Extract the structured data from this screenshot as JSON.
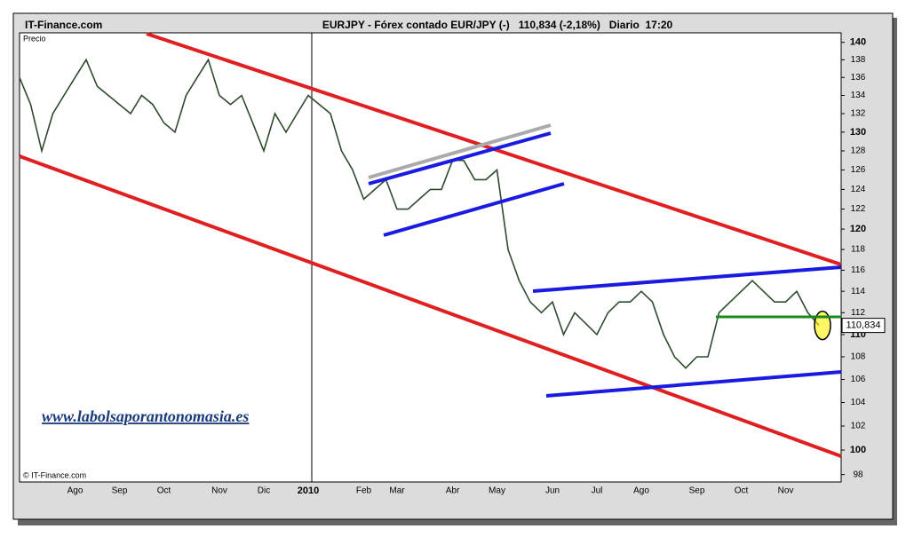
{
  "chart_data": {
    "type": "line",
    "site": "IT-Finance.com",
    "title": "EURJPY - Fórex contado EUR/JPY (-)   110,834 (-2,18%)   Diario  17:20",
    "copyright": "© IT-Finance.com",
    "watermark": "www.labolsaporantonomasia.es",
    "categories": [
      null,
      null,
      null,
      null,
      null,
      "Ago",
      null,
      null,
      null,
      "Sep",
      null,
      null,
      null,
      "Oct",
      null,
      null,
      null,
      null,
      "Nov",
      null,
      null,
      null,
      "Dic",
      null,
      null,
      null,
      "2010",
      null,
      null,
      null,
      null,
      "Feb",
      null,
      null,
      "Mar",
      null,
      null,
      null,
      null,
      "Abr",
      null,
      null,
      null,
      "May",
      null,
      null,
      null,
      null,
      "Jun",
      null,
      null,
      null,
      "Jul",
      null,
      null,
      null,
      "Ago",
      null,
      null,
      null,
      null,
      "Sep",
      null,
      null,
      null,
      "Oct",
      null,
      null,
      null,
      "Nov",
      null,
      null,
      null
    ],
    "series": [
      {
        "name": "Precio",
        "color": "#2f4a2f",
        "values": [
          136,
          133,
          128,
          132,
          134,
          136,
          138,
          135,
          134,
          133,
          132,
          134,
          133,
          131,
          130,
          134,
          136,
          138,
          134,
          133,
          134,
          131,
          128,
          132,
          130,
          132,
          134,
          133,
          132,
          128,
          126,
          123,
          124,
          125,
          122,
          122,
          123,
          124,
          124,
          127,
          127,
          125,
          125,
          126,
          118,
          115,
          113,
          112,
          113,
          110,
          112,
          111,
          110,
          112,
          113,
          113,
          114,
          113,
          110,
          108,
          107,
          108,
          108,
          112,
          113,
          114,
          115,
          114,
          113,
          113,
          114,
          112,
          110.834
        ],
        "value_labels": [
          null,
          null,
          null,
          null,
          null,
          null,
          null,
          null,
          null,
          null,
          null,
          null,
          null,
          null,
          null,
          null,
          null,
          null,
          null,
          null,
          null,
          null,
          null,
          null,
          null,
          null,
          null,
          null,
          null,
          null,
          null,
          null,
          null,
          null,
          null,
          null,
          null,
          null,
          null,
          null,
          null,
          null,
          null,
          null,
          null,
          null,
          null,
          null,
          null,
          null,
          null,
          null,
          null,
          null,
          null,
          null,
          null,
          null,
          null,
          null,
          null,
          null,
          null,
          null,
          null,
          null,
          null,
          null,
          null,
          null,
          null,
          null,
          "110,834"
        ]
      }
    ],
    "log_y": true,
    "ylim": [
      97.4,
      141.1
    ],
    "yticks": [
      98,
      100,
      102,
      104,
      106,
      108,
      110,
      112,
      114,
      116,
      118,
      120,
      122,
      124,
      126,
      128,
      130,
      132,
      134,
      136,
      138,
      140
    ]
  }
}
